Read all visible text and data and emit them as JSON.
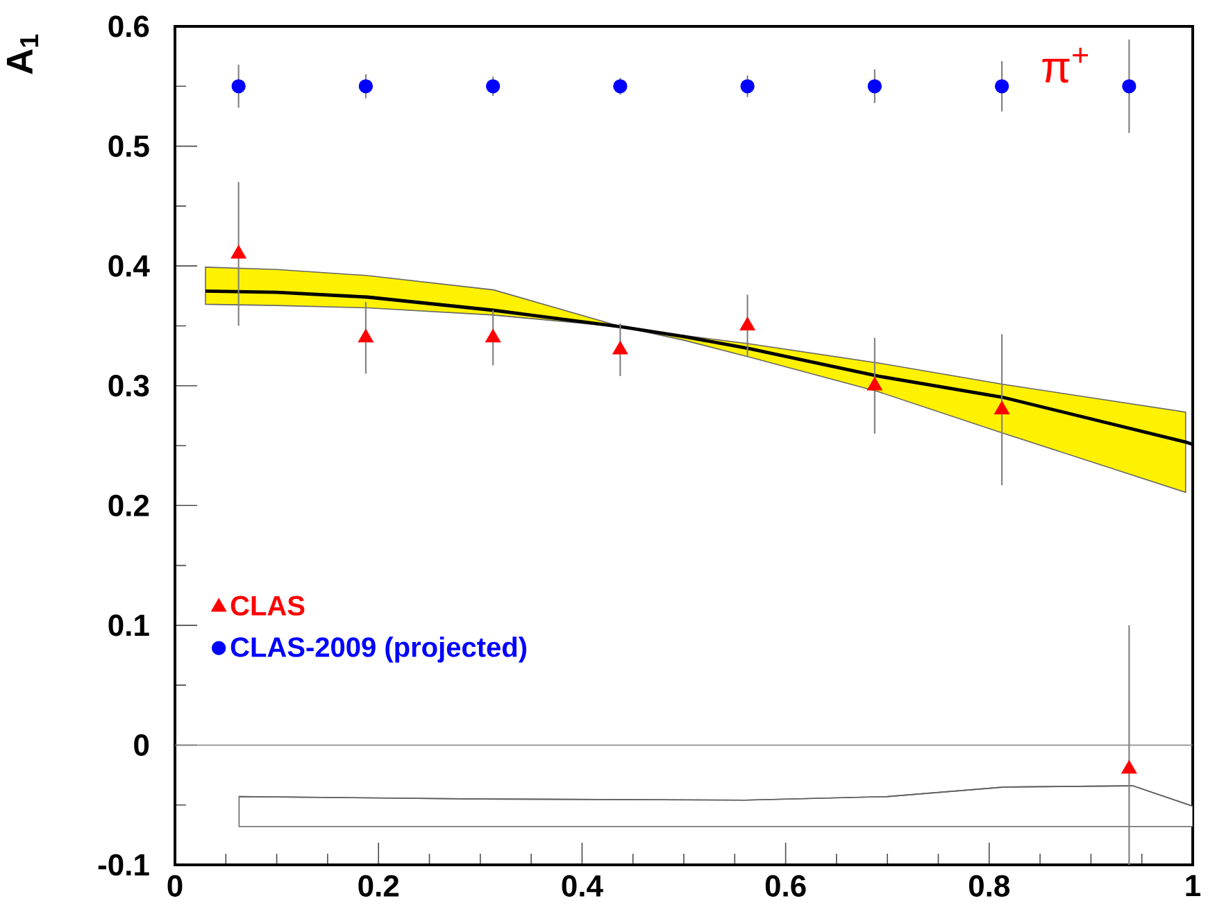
{
  "chart_data": {
    "type": "scatter",
    "ylabel": "A$_{1}$",
    "annotations": [
      "π$^{+}$"
    ],
    "xlim": [
      0,
      1
    ],
    "ylim": [
      -0.1,
      0.6
    ],
    "xticks": [
      0,
      0.2,
      0.4,
      0.6,
      0.8,
      1
    ],
    "yticks": [
      -0.1,
      0,
      0.1,
      0.2,
      0.3,
      0.4,
      0.5,
      0.6
    ],
    "legend": "bottom left",
    "ref_lines": [
      {
        "axis": "y",
        "value": 0,
        "color": "#808080"
      }
    ],
    "series": [
      {
        "name": "CLAS",
        "marker": "triangle",
        "color": "#ff0000",
        "x": [
          0.0625,
          0.1875,
          0.3125,
          0.4375,
          0.5625,
          0.6875,
          0.8125,
          0.9375
        ],
        "values": [
          0.41,
          0.34,
          0.34,
          0.33,
          0.35,
          0.3,
          0.28,
          -0.02
        ],
        "errors": [
          0.06,
          0.03,
          0.023,
          0.022,
          0.026,
          0.04,
          0.063,
          [
            -0.1,
            0.1
          ]
        ]
      },
      {
        "name": "CLAS-2009 (projected)",
        "marker": "circle",
        "color": "#0000ff",
        "x": [
          0.0625,
          0.1875,
          0.3125,
          0.4375,
          0.5625,
          0.6875,
          0.8125,
          0.9375
        ],
        "values": [
          0.55,
          0.55,
          0.55,
          0.55,
          0.55,
          0.55,
          0.55,
          0.55
        ],
        "errors": [
          0.018,
          0.01,
          0.008,
          0.007,
          0.009,
          0.014,
          0.021,
          0.039
        ]
      },
      {
        "type": "line",
        "color": "#000000",
        "x": [
          0.03,
          0.1,
          0.189,
          0.313,
          0.44,
          0.5,
          0.564,
          0.691,
          0.815,
          0.993,
          1.0
        ],
        "values": [
          0.379,
          0.378,
          0.374,
          0.363,
          0.349,
          0.341,
          0.331,
          0.308,
          0.29,
          0.253,
          0.251
        ],
        "lower": [
          0.368,
          0.367,
          0.365,
          0.359,
          0.349,
          0.338,
          0.324,
          0.295,
          0.26,
          0.211,
          null
        ],
        "upper": [
          0.399,
          0.397,
          0.392,
          0.38,
          0.349,
          0.342,
          0.335,
          0.319,
          0.301,
          0.278,
          null
        ]
      },
      {
        "type": "line",
        "color": "#606060",
        "x": [
          0.063,
          0.3,
          0.56,
          0.7,
          0.815,
          0.941,
          1.0
        ],
        "values": [
          -0.043,
          -0.045,
          -0.046,
          -0.043,
          -0.035,
          -0.034,
          -0.051
        ],
        "lower": [
          -0.068,
          -0.068,
          -0.068,
          -0.068,
          -0.068,
          -0.068,
          -0.068
        ],
        "upper": [
          -0.043,
          -0.045,
          -0.046,
          -0.043,
          -0.035,
          -0.034,
          -0.051
        ]
      }
    ]
  }
}
